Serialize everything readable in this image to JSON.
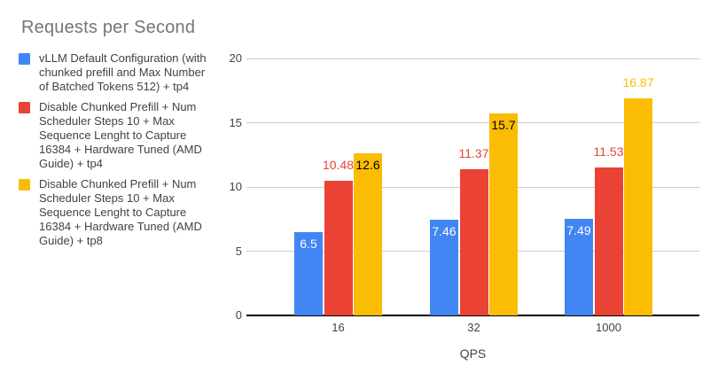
{
  "title": "Requests per Second",
  "chart_data": {
    "type": "bar",
    "title": "Requests per Second",
    "xlabel": "QPS",
    "ylabel": "",
    "categories": [
      "16",
      "32",
      "1000"
    ],
    "ylim": [
      0,
      20
    ],
    "yticks": [
      0,
      5,
      10,
      15,
      20
    ],
    "grid": true,
    "legend_position": "left",
    "series": [
      {
        "name": "vLLM Default Configuration (with chunked prefill and Max Number of Batched Tokens 512) + tp4",
        "color": "#4285F4",
        "values": [
          6.5,
          7.46,
          7.49
        ],
        "data_labels": [
          "6.5",
          "7.46",
          "7.49"
        ],
        "label_placements": [
          "inside",
          "inside",
          "inside"
        ],
        "label_colors": [
          "#ffffff",
          "#ffffff",
          "#ffffff"
        ]
      },
      {
        "name": "Disable Chunked Prefill + Num Scheduler Steps 10 + Max Sequence Lenght to Capture 16384 + Hardware Tuned (AMD Guide) + tp4",
        "color": "#EA4335",
        "values": [
          10.48,
          11.37,
          11.53
        ],
        "data_labels": [
          "10.48",
          "11.37",
          "11.53"
        ],
        "label_placements": [
          "above",
          "above",
          "above"
        ],
        "label_colors": [
          "#EA4335",
          "#EA4335",
          "#EA4335"
        ]
      },
      {
        "name": "Disable Chunked Prefill + Num Scheduler Steps 10 + Max Sequence Lenght to Capture 16384 + Hardware Tuned (AMD Guide) + tp8",
        "color": "#FBBC04",
        "values": [
          12.6,
          15.7,
          16.87
        ],
        "data_labels": [
          "12.6",
          "15.7",
          "16.87"
        ],
        "label_placements": [
          "inside",
          "inside",
          "above"
        ],
        "label_colors": [
          "#000000",
          "#000000",
          "#FBBC04"
        ]
      }
    ]
  },
  "legend": {
    "items": [
      {
        "color": "#4285F4",
        "lines": [
          "vLLM Default Configuration (with",
          "chunked prefill and Max Number",
          "of Batched Tokens 512) + tp4"
        ]
      },
      {
        "color": "#EA4335",
        "lines": [
          "Disable Chunked Prefill + Num",
          "Scheduler Steps 10 + Max",
          "Sequence Lenght to Capture",
          "16384 + Hardware Tuned (AMD",
          "Guide) + tp4"
        ]
      },
      {
        "color": "#FBBC04",
        "lines": [
          "Disable Chunked Prefill + Num",
          "Scheduler Steps 10 + Max",
          "Sequence Lenght to Capture",
          "16384 + Hardware Tuned (AMD",
          "Guide) + tp8"
        ]
      }
    ]
  },
  "colors": {
    "title": "#757575",
    "axis_text": "#424242",
    "gridline": "#cccccc",
    "baseline": "#000000",
    "background": "#ffffff"
  }
}
